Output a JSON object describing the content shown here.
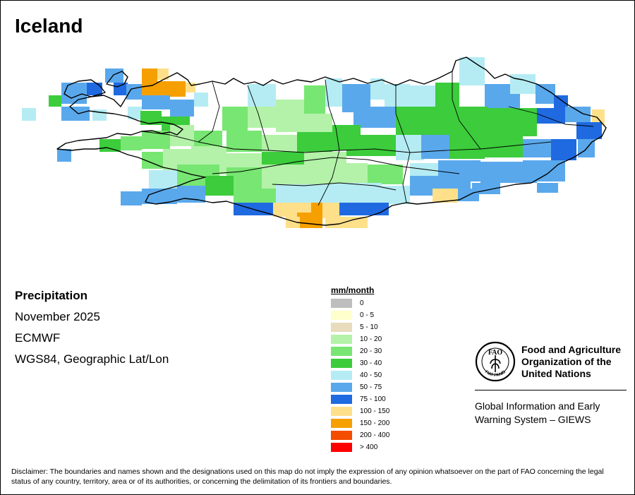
{
  "map": {
    "title": "Iceland",
    "product": "Precipitation",
    "period": "November 2025",
    "source": "ECMWF",
    "projection": "WGS84, Geographic Lat/Lon"
  },
  "legend": {
    "unit": "mm/month",
    "classes": [
      {
        "label": "0",
        "color": "#bebebe"
      },
      {
        "label": "0 - 5",
        "color": "#ffffcc"
      },
      {
        "label": "5 - 10",
        "color": "#e8dcbd"
      },
      {
        "label": "10 - 20",
        "color": "#b3f2a8"
      },
      {
        "label": "20 - 30",
        "color": "#78e672"
      },
      {
        "label": "30 - 40",
        "color": "#3ccc3c"
      },
      {
        "label": "40 - 50",
        "color": "#b5ecf4"
      },
      {
        "label": "50 - 75",
        "color": "#5aa8ec"
      },
      {
        "label": "75 - 100",
        "color": "#1f6ae0"
      },
      {
        "label": "100 - 150",
        "color": "#ffe08a"
      },
      {
        "label": "150 - 200",
        "color": "#f5a000"
      },
      {
        "label": "200 - 400",
        "color": "#f44c00"
      },
      {
        "label": "> 400",
        "color": "#ff0000"
      }
    ]
  },
  "organization": {
    "logo_text": "FAO",
    "logo_motto": "FIAT PANIS",
    "name": "Food and Agriculture Organization of the United Nations",
    "system": "Global Information and Early Warning System – GIEWS"
  },
  "disclaimer": "Disclaimer: The boundaries and names shown and the designations used on this map do not imply the expression of any opinion whatsoever on the part of FAO concerning the legal status of any country, territory, area or of its authorities, or concerning the delimitation of its frontiers and boundaries."
}
